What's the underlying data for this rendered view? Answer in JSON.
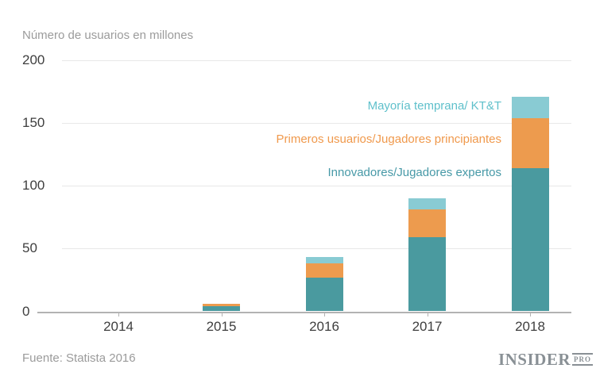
{
  "title": "Número de usuarios en millones",
  "source": "Fuente: Statista 2016",
  "branding": {
    "name": "INSIDER",
    "suffix": "PRO"
  },
  "colors": {
    "series_teal": "#4A9A9F",
    "series_orange": "#ED9B4E",
    "series_cyan": "#89CBD3",
    "legend_teal_text": "#4799A7",
    "legend_orange_text": "#F0994C",
    "legend_cyan_text": "#5FC0CB",
    "gridline": "#E8E8E8",
    "axis_line": "#B2B2B2",
    "axis_text": "#3E3E3E",
    "muted_text": "#9B9B9B"
  },
  "chart_data": {
    "type": "bar",
    "stacked": true,
    "title": "Número de usuarios en millones",
    "xlabel": "",
    "ylabel": "Número de usuarios en millones",
    "categories": [
      "2014",
      "2015",
      "2016",
      "2017",
      "2018"
    ],
    "series": [
      {
        "name": "Innovadores/Jugadores expertos",
        "color": "#4A9A9F",
        "values": [
          0,
          4,
          27,
          59,
          114
        ]
      },
      {
        "name": "Primeros usuarios/Jugadores principiantes",
        "color": "#ED9B4E",
        "values": [
          0,
          2,
          11.5,
          22,
          40
        ]
      },
      {
        "name": "Mayoría temprana/ KT&T",
        "color": "#89CBD3",
        "values": [
          0,
          0,
          4.5,
          9.3,
          17
        ]
      }
    ],
    "totals": [
      0,
      6,
      43,
      90.3,
      171
    ],
    "ylim": [
      0,
      200
    ],
    "yticks": [
      0,
      50,
      100,
      150,
      200
    ],
    "grid": true,
    "legend_position": "inside-right"
  },
  "legend": {
    "items": [
      {
        "label": "Mayoría temprana/ KT&T",
        "color": "#5FC0CB"
      },
      {
        "label": "Primeros usuarios/Jugadores principiantes",
        "color": "#F0994C"
      },
      {
        "label": "Innovadores/Jugadores expertos",
        "color": "#4799A7"
      }
    ]
  }
}
